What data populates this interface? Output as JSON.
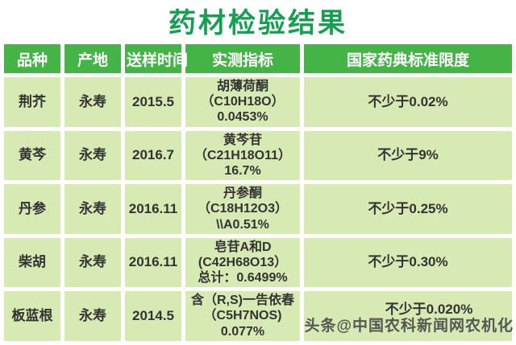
{
  "title": "药材检验结果",
  "colors": {
    "title_green": "#14a050",
    "header_green": "#45b447",
    "cell_green": "#d7eab3",
    "body_text": "#333333",
    "watermark_gray": "#4b4b4b",
    "background": "#ffffff"
  },
  "table": {
    "headers": {
      "variety": "品种",
      "origin": "产地",
      "sample_time": "送样时间",
      "measured_indicator": "实测指标",
      "standard_limit": "国家药典标准限度"
    },
    "rows": [
      {
        "variety": "荆芥",
        "origin": "永寿",
        "sample_time": "2015.5",
        "measured_lines": [
          "胡薄荷酮",
          "（C10H18O）",
          "0.0453%"
        ],
        "standard_limit": "不少于0.02%"
      },
      {
        "variety": "黄芩",
        "origin": "永寿",
        "sample_time": "2016.7",
        "measured_lines": [
          "黄芩苷",
          "（C21H18O11）",
          "16.7%"
        ],
        "standard_limit": "不少于9%"
      },
      {
        "variety": "丹参",
        "origin": "永寿",
        "sample_time": "2016.11",
        "measured_lines": [
          "丹参酮",
          "（C18H12O3）",
          "\\\\A0.51%"
        ],
        "standard_limit": "不少于0.25%"
      },
      {
        "variety": "柴胡",
        "origin": "永寿",
        "sample_time": "2016.11",
        "measured_lines": [
          "皂苷A和D",
          "(C42H68O13）",
          "总计：0.6499%"
        ],
        "standard_limit": "不少于0.30%"
      },
      {
        "variety": "板蓝根",
        "origin": "永寿",
        "sample_time": "2014.5",
        "measured_lines": [
          "含（R,S)一告依春",
          "（C5H7NOS)",
          "0.077%"
        ],
        "standard_limit": "不少于0.020%"
      }
    ]
  },
  "watermark": "头条@中国农科新闻网农机化"
}
